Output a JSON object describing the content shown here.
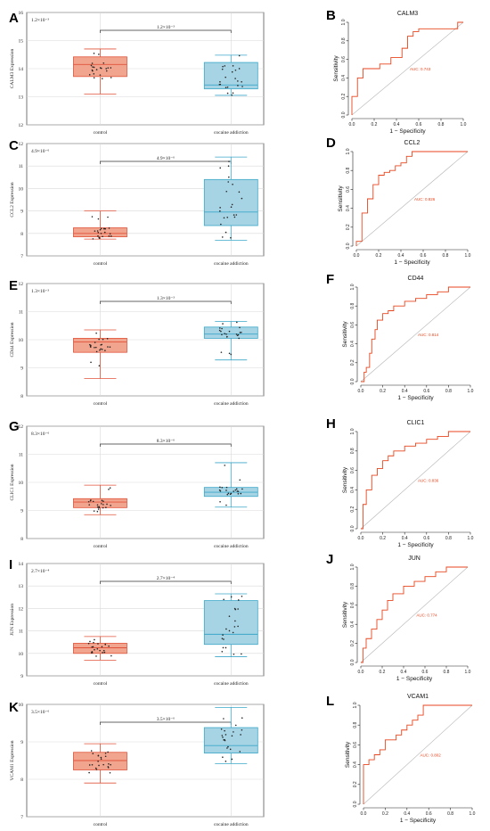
{
  "chart_data": [
    {
      "panel": "A",
      "type": "box",
      "ylabel": "CALM3 Expression",
      "categories": [
        "control",
        "cocaine addiction"
      ],
      "ylim": [
        12,
        16
      ],
      "yticks": [
        12,
        13,
        14,
        15,
        16
      ],
      "pvalue_label": "1.2×10⁻³",
      "boxes": [
        {
          "min": 13.1,
          "q1": 13.72,
          "median": 14.15,
          "q3": 14.42,
          "max": 14.7
        },
        {
          "min": 13.05,
          "q1": 13.28,
          "median": 13.42,
          "q3": 14.22,
          "max": 14.48
        }
      ]
    },
    {
      "panel": "B",
      "type": "line",
      "title": "CALM3",
      "xlabel": "1 − Specificity",
      "ylabel": "Sensitivity",
      "xlim": [
        0,
        1
      ],
      "ylim": [
        0,
        1
      ],
      "ticks": [
        "0.0",
        "0.2",
        "0.4",
        "0.6",
        "0.8",
        "1.0"
      ],
      "auc_label": "AUC: 0.743",
      "x": [
        0,
        0,
        0.05,
        0.05,
        0.1,
        0.1,
        0.25,
        0.25,
        0.35,
        0.35,
        0.45,
        0.45,
        0.5,
        0.5,
        0.55,
        0.55,
        0.6,
        0.6,
        0.95,
        0.95,
        1.0
      ],
      "y": [
        0,
        0.2,
        0.2,
        0.4,
        0.4,
        0.5,
        0.5,
        0.55,
        0.55,
        0.62,
        0.62,
        0.72,
        0.72,
        0.85,
        0.85,
        0.9,
        0.9,
        0.93,
        0.93,
        1.0,
        1.0
      ]
    },
    {
      "panel": "C",
      "type": "box",
      "ylabel": "CCL2 Expression",
      "categories": [
        "control",
        "cocaine addiction"
      ],
      "ylim": [
        7,
        12
      ],
      "yticks": [
        7,
        8,
        9,
        10,
        11,
        12
      ],
      "pvalue_label": "4.9×10⁻⁶",
      "boxes": [
        {
          "min": 7.75,
          "q1": 7.85,
          "median": 8.0,
          "q3": 8.25,
          "max": 9.0
        },
        {
          "min": 7.7,
          "q1": 8.35,
          "median": 8.95,
          "q3": 10.4,
          "max": 11.4
        }
      ]
    },
    {
      "panel": "D",
      "type": "line",
      "title": "CCL2",
      "xlabel": "1 − Specificity",
      "ylabel": "Sensitivity",
      "xlim": [
        0,
        1
      ],
      "ylim": [
        0,
        1
      ],
      "ticks": [
        "0.0",
        "0.2",
        "0.4",
        "0.6",
        "0.8",
        "1.0"
      ],
      "auc_label": "AUC: 0.826",
      "x": [
        0,
        0,
        0.05,
        0.05,
        0.1,
        0.1,
        0.15,
        0.15,
        0.2,
        0.2,
        0.25,
        0.25,
        0.3,
        0.3,
        0.35,
        0.35,
        0.4,
        0.4,
        0.45,
        0.45,
        0.5,
        0.5,
        1.0
      ],
      "y": [
        0,
        0.05,
        0.05,
        0.35,
        0.35,
        0.5,
        0.5,
        0.65,
        0.65,
        0.75,
        0.75,
        0.78,
        0.78,
        0.8,
        0.8,
        0.85,
        0.85,
        0.88,
        0.88,
        0.95,
        0.95,
        1.0,
        1.0
      ]
    },
    {
      "panel": "E",
      "type": "box",
      "ylabel": "CD44 Expression",
      "categories": [
        "control",
        "cocaine addiction"
      ],
      "ylim": [
        8,
        12
      ],
      "yticks": [
        8,
        9,
        10,
        11,
        12
      ],
      "pvalue_label": "1.3×10⁻³",
      "boxes": [
        {
          "min": 8.62,
          "q1": 9.55,
          "median": 9.92,
          "q3": 10.05,
          "max": 10.35
        },
        {
          "min": 9.28,
          "q1": 10.05,
          "median": 10.2,
          "q3": 10.45,
          "max": 10.65
        }
      ]
    },
    {
      "panel": "F",
      "type": "line",
      "title": "CD44",
      "xlabel": "1 − Specificity",
      "ylabel": "Sensitivity",
      "xlim": [
        0,
        1
      ],
      "ylim": [
        0,
        1
      ],
      "ticks": [
        "0.0",
        "0.2",
        "0.4",
        "0.6",
        "0.8",
        "1.0"
      ],
      "auc_label": "AUC: 0.814",
      "x": [
        0,
        0.03,
        0.03,
        0.05,
        0.05,
        0.08,
        0.08,
        0.1,
        0.1,
        0.13,
        0.13,
        0.15,
        0.15,
        0.2,
        0.2,
        0.25,
        0.25,
        0.3,
        0.3,
        0.4,
        0.4,
        0.5,
        0.5,
        0.6,
        0.6,
        0.7,
        0.7,
        0.8,
        0.8,
        1.0
      ],
      "y": [
        0,
        0,
        0.1,
        0.1,
        0.15,
        0.15,
        0.3,
        0.3,
        0.45,
        0.45,
        0.55,
        0.55,
        0.65,
        0.65,
        0.72,
        0.72,
        0.75,
        0.75,
        0.8,
        0.8,
        0.85,
        0.85,
        0.88,
        0.88,
        0.92,
        0.92,
        0.95,
        0.95,
        1.0,
        1.0
      ]
    },
    {
      "panel": "G",
      "type": "box",
      "ylabel": "CLIC1 Expression",
      "categories": [
        "control",
        "cocaine addiction"
      ],
      "ylim": [
        8,
        12
      ],
      "yticks": [
        8,
        9,
        10,
        11,
        12
      ],
      "pvalue_label": "8.3×10⁻⁶",
      "boxes": [
        {
          "min": 8.85,
          "q1": 9.1,
          "median": 9.3,
          "q3": 9.42,
          "max": 9.9
        },
        {
          "min": 9.12,
          "q1": 9.5,
          "median": 9.65,
          "q3": 9.82,
          "max": 10.7
        }
      ]
    },
    {
      "panel": "H",
      "type": "line",
      "title": "CLIC1",
      "xlabel": "1 − Specificity",
      "ylabel": "Sensitivity",
      "xlim": [
        0,
        1
      ],
      "ylim": [
        0,
        1
      ],
      "ticks": [
        "0.0",
        "0.2",
        "0.4",
        "0.6",
        "0.8",
        "1.0"
      ],
      "auc_label": "AUC: 0.836",
      "x": [
        0,
        0.02,
        0.02,
        0.05,
        0.05,
        0.1,
        0.1,
        0.15,
        0.15,
        0.2,
        0.2,
        0.25,
        0.25,
        0.3,
        0.3,
        0.4,
        0.4,
        0.5,
        0.5,
        0.6,
        0.6,
        0.7,
        0.7,
        0.8,
        0.8,
        1.0
      ],
      "y": [
        0,
        0,
        0.25,
        0.25,
        0.4,
        0.4,
        0.55,
        0.55,
        0.62,
        0.62,
        0.7,
        0.7,
        0.75,
        0.75,
        0.8,
        0.8,
        0.85,
        0.85,
        0.88,
        0.88,
        0.92,
        0.92,
        0.95,
        0.95,
        1.0,
        1.0
      ]
    },
    {
      "panel": "I",
      "type": "box",
      "ylabel": "JUN Expression",
      "categories": [
        "control",
        "cocaine addiction"
      ],
      "ylim": [
        9,
        14
      ],
      "yticks": [
        9,
        10,
        11,
        12,
        13,
        14
      ],
      "pvalue_label": "2.7×10⁻⁴",
      "boxes": [
        {
          "min": 9.7,
          "q1": 10.0,
          "median": 10.25,
          "q3": 10.45,
          "max": 10.75
        },
        {
          "min": 9.85,
          "q1": 10.4,
          "median": 10.85,
          "q3": 12.35,
          "max": 12.65
        }
      ]
    },
    {
      "panel": "J",
      "type": "line",
      "title": "JUN",
      "xlabel": "1 − Specificity",
      "ylabel": "Sensitivity",
      "xlim": [
        0,
        1
      ],
      "ylim": [
        0,
        1
      ],
      "ticks": [
        "0.0",
        "0.2",
        "0.4",
        "0.6",
        "0.8",
        "1.0"
      ],
      "auc_label": "AUC: 0.774",
      "x": [
        0,
        0.02,
        0.02,
        0.05,
        0.05,
        0.1,
        0.1,
        0.15,
        0.15,
        0.2,
        0.2,
        0.25,
        0.25,
        0.3,
        0.3,
        0.4,
        0.4,
        0.5,
        0.5,
        0.6,
        0.6,
        0.7,
        0.7,
        0.8,
        0.8,
        1.0
      ],
      "y": [
        0,
        0,
        0.15,
        0.15,
        0.25,
        0.25,
        0.35,
        0.35,
        0.45,
        0.45,
        0.55,
        0.55,
        0.65,
        0.65,
        0.72,
        0.72,
        0.8,
        0.8,
        0.85,
        0.85,
        0.9,
        0.9,
        0.95,
        0.95,
        1.0,
        1.0
      ]
    },
    {
      "panel": "K",
      "type": "box",
      "ylabel": "VCAM1 Expression",
      "categories": [
        "control",
        "cocaine addiction"
      ],
      "ylim": [
        7,
        10
      ],
      "yticks": [
        7,
        8,
        9,
        10
      ],
      "pvalue_label": "3.5×10⁻⁶",
      "boxes": [
        {
          "min": 7.9,
          "q1": 8.25,
          "median": 8.5,
          "q3": 8.72,
          "max": 8.95
        },
        {
          "min": 8.42,
          "q1": 8.7,
          "median": 8.9,
          "q3": 9.38,
          "max": 9.92
        }
      ]
    },
    {
      "panel": "L",
      "type": "line",
      "title": "VCAM1",
      "xlabel": "1 − Specificity",
      "ylabel": "Sensitivity",
      "xlim": [
        0,
        1
      ],
      "ylim": [
        0,
        1
      ],
      "ticks": [
        "0.0",
        "0.2",
        "0.4",
        "0.6",
        "0.8",
        "1.0"
      ],
      "auc_label": "AUC: 0.802",
      "x": [
        0,
        0,
        0.05,
        0.05,
        0.1,
        0.1,
        0.15,
        0.15,
        0.2,
        0.2,
        0.3,
        0.3,
        0.35,
        0.35,
        0.4,
        0.4,
        0.45,
        0.45,
        0.5,
        0.5,
        0.55,
        0.55,
        1.0
      ],
      "y": [
        0,
        0.4,
        0.4,
        0.45,
        0.45,
        0.5,
        0.5,
        0.55,
        0.55,
        0.65,
        0.65,
        0.7,
        0.7,
        0.75,
        0.75,
        0.8,
        0.8,
        0.85,
        0.85,
        0.9,
        0.9,
        1.0,
        1.0
      ]
    }
  ],
  "colors": {
    "control_fill": "#f2a58e",
    "control_stroke": "#e0533a",
    "case_fill": "#a7d4e4",
    "case_stroke": "#3ba7c9",
    "roc_line": "#e8461f",
    "auc_text": "#e8461f",
    "diagonal": "#b4b4b4",
    "grid": "#d9d9d9",
    "points": "#222222"
  }
}
